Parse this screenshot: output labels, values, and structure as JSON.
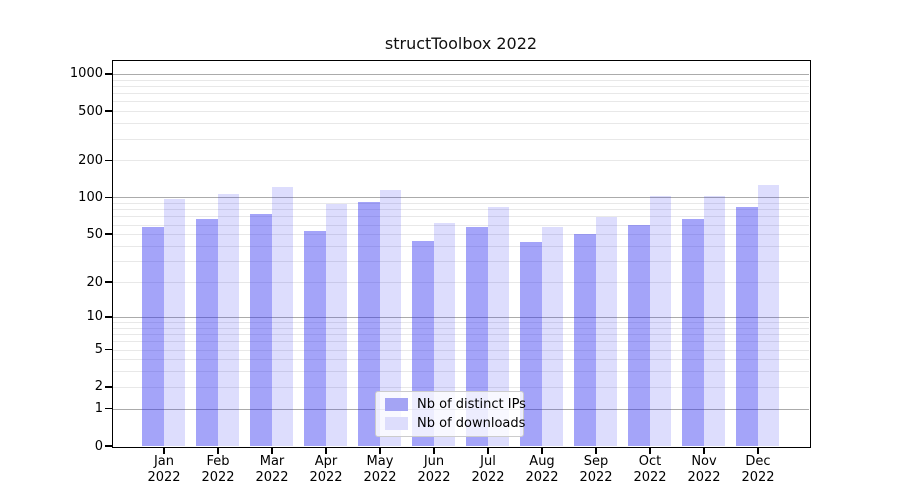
{
  "chart_data": {
    "type": "bar",
    "title": "structToolbox 2022",
    "categories": [
      "Jan",
      "Feb",
      "Mar",
      "Apr",
      "May",
      "Jun",
      "Jul",
      "Aug",
      "Sep",
      "Oct",
      "Nov",
      "Dec"
    ],
    "year_label": "2022",
    "series": [
      {
        "name": "Nb of distinct IPs",
        "fill": "rgba(38,38,240,0.42)",
        "legend_color": "#a4a4f4",
        "values": [
          57,
          67,
          73,
          53,
          91,
          44,
          57,
          43,
          50,
          60,
          67,
          83
        ]
      },
      {
        "name": "Nb of downloads",
        "fill": "rgba(38,38,240,0.155)",
        "legend_color": "#ddddfc",
        "values": [
          97,
          106,
          122,
          88,
          115,
          62,
          84,
          57,
          69,
          102,
          103,
          126
        ]
      }
    ],
    "yscale": "log1p",
    "ylim": [
      0,
      1270
    ],
    "yticks": [
      1000,
      500,
      200,
      100,
      50,
      20,
      10,
      5,
      2,
      1,
      0
    ],
    "grid": {
      "major": [
        1,
        10,
        100,
        1000
      ],
      "minor": [
        2,
        3,
        4,
        5,
        6,
        7,
        8,
        9,
        20,
        30,
        40,
        50,
        60,
        70,
        80,
        90,
        200,
        300,
        400,
        500,
        600,
        700,
        800,
        900
      ],
      "major_color": "#ababab",
      "minor_color": "#e8e8e8"
    },
    "legend_position": "lower center",
    "text_color": "#000000"
  }
}
